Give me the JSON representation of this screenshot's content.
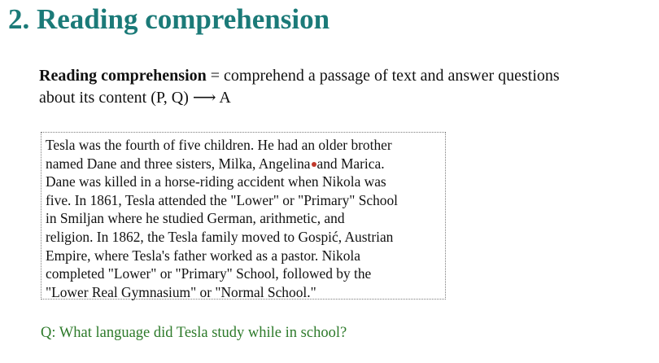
{
  "slide": {
    "title": "2. Reading comprehension"
  },
  "definition": {
    "term": "Reading comprehension",
    "equals": " = ",
    "text_line1": "comprehend a passage of text and answer questions",
    "text_line2": "about its content  (P, Q) ⟶ A"
  },
  "passage": {
    "lines_before_cursor": [
      "Tesla was the fourth of five children. He had an older brother"
    ],
    "cursor_line_before": "named Dane and three sisters, Milka, Angelina",
    "cursor_line_after": "and Marica.",
    "lines_after_cursor": [
      "Dane was killed in a horse-riding accident when Nikola was",
      "five. In 1861, Tesla attended the \"Lower\" or \"Primary\" School",
      "in Smiljan where he studied German, arithmetic, and",
      "religion. In 1862, the Tesla family moved to Gospić, Austrian",
      "Empire, where Tesla's father worked as a pastor. Nikola",
      "completed \"Lower\" or \"Primary\" School, followed by the",
      "\"Lower Real Gymnasium\" or \"Normal School.\""
    ]
  },
  "question": {
    "text": "Q: What language did Tesla study while in school?"
  },
  "colors": {
    "title": "#1b7a78",
    "question": "#2d7a2a",
    "cursor": "#c0392b"
  }
}
